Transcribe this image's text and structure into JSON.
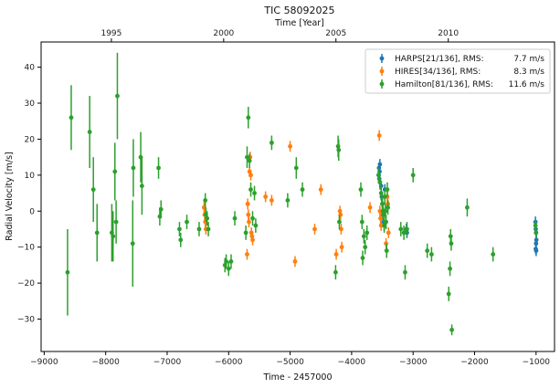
{
  "chart_data": {
    "type": "scatter",
    "title": "TIC 58092025",
    "xlabel": "Time - 2457000",
    "ylabel": "Radial Velocity [m/s]",
    "top_xlabel": "Time [Year]",
    "xlim": [
      -9050,
      -700
    ],
    "ylim": [
      -39,
      47
    ],
    "xticks": [
      -9000,
      -8000,
      -7000,
      -6000,
      -5000,
      -4000,
      -3000,
      -2000,
      -1000
    ],
    "yticks": [
      -30,
      -20,
      -10,
      0,
      10,
      20,
      30,
      40
    ],
    "top_ticks": [
      {
        "label": "1995",
        "x": -7907
      },
      {
        "label": "2000",
        "x": -6081
      },
      {
        "label": "2005",
        "x": -4255
      },
      {
        "label": "2010",
        "x": -2428
      }
    ],
    "grid": false,
    "legend_position": "top-right",
    "series": [
      {
        "name": "HARPS[21/136], RMS:",
        "rms": "7.7 m/s",
        "color": "#1f77b4",
        "points": [
          [
            -3560,
            10,
            1.5
          ],
          [
            -3555,
            12,
            1.5
          ],
          [
            -3550,
            9,
            1.5
          ],
          [
            -3545,
            11,
            1.5
          ],
          [
            -3540,
            13,
            1.5
          ],
          [
            -3520,
            7,
            1.5
          ],
          [
            -3510,
            4,
            1.5
          ],
          [
            -3500,
            2,
            1.5
          ],
          [
            -3490,
            -1,
            1.5
          ],
          [
            -3480,
            -3,
            1.5
          ],
          [
            -3470,
            -4,
            1.5
          ],
          [
            -3460,
            6,
            1.5
          ],
          [
            -3110,
            -5,
            1.5
          ],
          [
            -3100,
            -6,
            1.5
          ],
          [
            -1010,
            -3,
            1.5
          ],
          [
            -1005,
            -5,
            1.5
          ],
          [
            -1000,
            -6,
            1.5
          ],
          [
            -995,
            -8,
            1.5
          ],
          [
            -1000,
            -9,
            1.5
          ],
          [
            -1005,
            -10.5,
            1.5
          ],
          [
            -998,
            -11,
            1.5
          ]
        ]
      },
      {
        "name": "HIRES[34/136], RMS:",
        "rms": "8.3 m/s",
        "color": "#ff7f0e",
        "points": [
          [
            -6400,
            1,
            1.5
          ],
          [
            -6390,
            -1,
            1.5
          ],
          [
            -6380,
            -3,
            1.5
          ],
          [
            -6370,
            -5,
            1.5
          ],
          [
            -5700,
            -12,
            1.5
          ],
          [
            -5690,
            2,
            1.5
          ],
          [
            -5680,
            -1,
            1.5
          ],
          [
            -5670,
            -3,
            1.5
          ],
          [
            -5660,
            11,
            1.5
          ],
          [
            -5650,
            15,
            1.5
          ],
          [
            -5640,
            10,
            1.5
          ],
          [
            -5630,
            -6,
            1.5
          ],
          [
            -5620,
            -7,
            1.5
          ],
          [
            -5610,
            -8,
            1.5
          ],
          [
            -5400,
            4,
            1.5
          ],
          [
            -5300,
            3,
            1.5
          ],
          [
            -5000,
            18,
            1.5
          ],
          [
            -4920,
            -14,
            1.5
          ],
          [
            -4600,
            -5,
            1.5
          ],
          [
            -4500,
            6,
            1.5
          ],
          [
            -4250,
            -12,
            1.5
          ],
          [
            -4190,
            0,
            1.5
          ],
          [
            -4180,
            -1,
            1.5
          ],
          [
            -4170,
            -5,
            1.5
          ],
          [
            -4160,
            -10,
            1.5
          ],
          [
            -3700,
            1,
            1.5
          ],
          [
            -3550,
            21,
            1.5
          ],
          [
            -3540,
            0,
            1.5
          ],
          [
            -3530,
            -2,
            1.5
          ],
          [
            -3520,
            -4,
            1.5
          ],
          [
            -3440,
            -9,
            1.5
          ],
          [
            -3420,
            4,
            1.5
          ],
          [
            -3410,
            2,
            1.5
          ],
          [
            -3400,
            -6,
            1.5
          ]
        ]
      },
      {
        "name": "Hamilton[81/136], RMS:",
        "rms": "11.6 m/s",
        "color": "#2ca02c",
        "points": [
          [
            -8620,
            -17,
            12
          ],
          [
            -8560,
            26,
            9
          ],
          [
            -8260,
            22,
            10
          ],
          [
            -8200,
            6,
            9
          ],
          [
            -8140,
            -6,
            8
          ],
          [
            -7900,
            -6,
            8
          ],
          [
            -7880,
            -7,
            7
          ],
          [
            -7850,
            11,
            8
          ],
          [
            -7830,
            -3,
            6
          ],
          [
            -7810,
            32,
            12
          ],
          [
            -7560,
            -9,
            12
          ],
          [
            -7550,
            12,
            8
          ],
          [
            -7430,
            15,
            7
          ],
          [
            -7410,
            7,
            8
          ],
          [
            -7140,
            12,
            3
          ],
          [
            -7120,
            -1.5,
            2.5
          ],
          [
            -7100,
            0.5,
            2.5
          ],
          [
            -6800,
            -5,
            2
          ],
          [
            -6780,
            -8,
            2
          ],
          [
            -6680,
            -3,
            2
          ],
          [
            -6480,
            -5,
            2
          ],
          [
            -6380,
            3,
            2
          ],
          [
            -6370,
            -1,
            2
          ],
          [
            -6350,
            -2,
            2
          ],
          [
            -6330,
            -5,
            2
          ],
          [
            -6060,
            -15,
            2
          ],
          [
            -6000,
            -16,
            2
          ],
          [
            -5960,
            -14,
            2
          ],
          [
            -5900,
            -2,
            2
          ],
          [
            -5720,
            -6,
            2
          ],
          [
            -5700,
            15,
            3
          ],
          [
            -5680,
            26,
            3
          ],
          [
            -5660,
            14,
            2
          ],
          [
            -5640,
            6,
            2
          ],
          [
            -5610,
            -2,
            2
          ],
          [
            -5580,
            5,
            2
          ],
          [
            -5560,
            -4,
            2
          ],
          [
            -5300,
            19,
            2
          ],
          [
            -5040,
            3,
            2
          ],
          [
            -4900,
            12,
            3
          ],
          [
            -4260,
            -17,
            2
          ],
          [
            -4220,
            18,
            3
          ],
          [
            -4210,
            17,
            3
          ],
          [
            -3850,
            6,
            2
          ],
          [
            -3830,
            -3,
            2
          ],
          [
            -3820,
            -13,
            2
          ],
          [
            -3800,
            -7,
            2
          ],
          [
            -3780,
            -10,
            2
          ],
          [
            -3750,
            -6,
            2
          ],
          [
            -3560,
            10,
            2
          ],
          [
            -3540,
            8,
            2
          ],
          [
            -3520,
            5,
            2
          ],
          [
            -3500,
            2,
            2
          ],
          [
            -3490,
            0,
            2
          ],
          [
            -3480,
            -1,
            2
          ],
          [
            -3470,
            -4,
            2
          ],
          [
            -3460,
            4,
            2
          ],
          [
            -3450,
            0,
            2
          ],
          [
            -3440,
            -3,
            2
          ],
          [
            -3430,
            -11,
            2
          ],
          [
            -3420,
            6,
            2
          ],
          [
            -3410,
            1,
            2
          ],
          [
            -3200,
            -5,
            2
          ],
          [
            -3150,
            -6,
            2
          ],
          [
            -3130,
            -17,
            2
          ],
          [
            -3000,
            10,
            2
          ],
          [
            -2770,
            -11,
            2
          ],
          [
            -2700,
            -12,
            2
          ],
          [
            -2420,
            -23,
            2
          ],
          [
            -2400,
            -16,
            2
          ],
          [
            -2390,
            -7,
            2
          ],
          [
            -2380,
            -9,
            2
          ],
          [
            -2370,
            -33,
            1.5
          ],
          [
            -2120,
            1,
            2.5
          ],
          [
            -1700,
            -12,
            2
          ],
          [
            -1010,
            -4,
            1.5
          ],
          [
            -1000,
            -6,
            1.5
          ],
          [
            -6040,
            -14,
            2
          ],
          [
            -4800,
            6,
            2
          ],
          [
            -4200,
            -3,
            2
          ],
          [
            -3100,
            -5,
            2
          ]
        ]
      }
    ]
  }
}
